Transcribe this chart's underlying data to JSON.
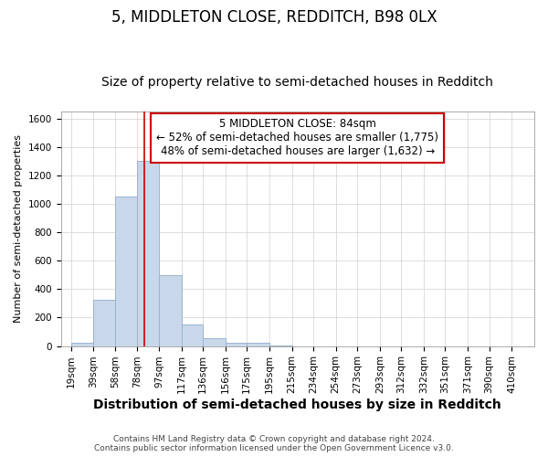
{
  "title": "5, MIDDLETON CLOSE, REDDITCH, B98 0LX",
  "subtitle": "Size of property relative to semi-detached houses in Redditch",
  "xlabel": "Distribution of semi-detached houses by size in Redditch",
  "ylabel": "Number of semi-detached properties",
  "footer_line1": "Contains HM Land Registry data © Crown copyright and database right 2024.",
  "footer_line2": "Contains public sector information licensed under the Open Government Licence v3.0.",
  "annotation_title": "5 MIDDLETON CLOSE: 84sqm",
  "annotation_line1": "← 52% of semi-detached houses are smaller (1,775)",
  "annotation_line2": "48% of semi-detached houses are larger (1,632) →",
  "bar_left_edges": [
    19,
    39,
    58,
    78,
    97,
    117,
    136,
    156,
    175,
    195,
    215,
    234,
    254,
    273,
    293,
    312,
    332,
    351,
    371,
    390
  ],
  "bar_widths": [
    20,
    19,
    20,
    19,
    20,
    19,
    20,
    19,
    20,
    20,
    19,
    20,
    19,
    20,
    19,
    20,
    19,
    20,
    19,
    20
  ],
  "bar_heights": [
    20,
    325,
    1050,
    1300,
    500,
    150,
    55,
    25,
    20,
    5,
    0,
    0,
    0,
    0,
    0,
    0,
    0,
    0,
    0,
    0
  ],
  "bar_color": "#c8d8ea",
  "bar_edge_color": "#9ab4cc",
  "red_line_x": 84,
  "ylim": [
    0,
    1650
  ],
  "yticks": [
    0,
    200,
    400,
    600,
    800,
    1000,
    1200,
    1400,
    1600
  ],
  "x_tick_positions": [
    19,
    39,
    58,
    78,
    97,
    117,
    136,
    156,
    175,
    195,
    215,
    234,
    254,
    273,
    293,
    312,
    332,
    351,
    371,
    390,
    410
  ],
  "x_tick_labels": [
    "19sqm",
    "39sqm",
    "58sqm",
    "78sqm",
    "97sqm",
    "117sqm",
    "136sqm",
    "156sqm",
    "175sqm",
    "195sqm",
    "215sqm",
    "234sqm",
    "254sqm",
    "273sqm",
    "293sqm",
    "312sqm",
    "332sqm",
    "351sqm",
    "371sqm",
    "390sqm",
    "410sqm"
  ],
  "xlim": [
    10,
    430
  ],
  "annotation_box_facecolor": "#ffffff",
  "annotation_box_edgecolor": "#cc0000",
  "title_fontsize": 12,
  "subtitle_fontsize": 10,
  "xlabel_fontsize": 10,
  "ylabel_fontsize": 8,
  "tick_fontsize": 7.5,
  "annotation_fontsize": 8.5,
  "footer_fontsize": 6.5
}
